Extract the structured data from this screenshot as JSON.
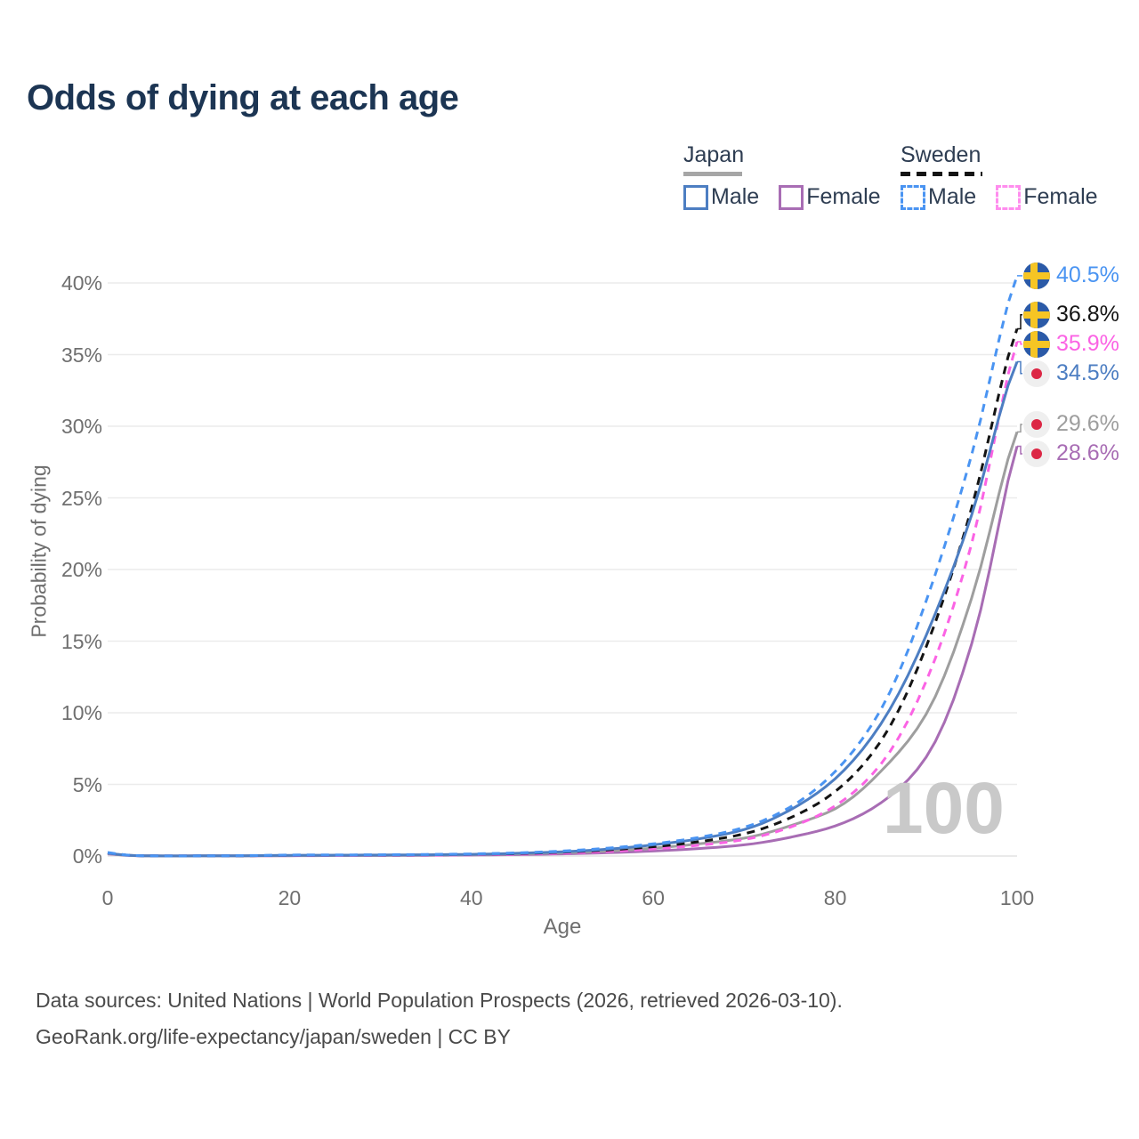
{
  "page": {
    "title": "Odds of dying at each age",
    "watermark": "100"
  },
  "legend": {
    "groups": [
      {
        "label": "Japan",
        "style": "solid",
        "underline_color": "#a6a6a6",
        "items": [
          {
            "label": "Male",
            "color": "#4d7ec2"
          },
          {
            "label": "Female",
            "color": "#a86db4"
          }
        ]
      },
      {
        "label": "Sweden",
        "style": "dashed",
        "underline_color": "#141414",
        "items": [
          {
            "label": "Male",
            "color": "#4a94f2"
          },
          {
            "label": "Female",
            "color": "#ff8dee"
          }
        ]
      }
    ]
  },
  "axes": {
    "x": {
      "title": "Age",
      "ticks": [
        {
          "value": 0,
          "label": "0"
        },
        {
          "value": 20,
          "label": "20"
        },
        {
          "value": 40,
          "label": "40"
        },
        {
          "value": 60,
          "label": "60"
        },
        {
          "value": 80,
          "label": "80"
        },
        {
          "value": 100,
          "label": "100"
        }
      ]
    },
    "y": {
      "title": "Probability of dying",
      "ticks": [
        {
          "value": 0,
          "label": "0%"
        },
        {
          "value": 5,
          "label": "5%"
        },
        {
          "value": 10,
          "label": "10%"
        },
        {
          "value": 15,
          "label": "15%"
        },
        {
          "value": 20,
          "label": "20%"
        },
        {
          "value": 25,
          "label": "25%"
        },
        {
          "value": 30,
          "label": "30%"
        },
        {
          "value": 35,
          "label": "35%"
        },
        {
          "value": 40,
          "label": "40%"
        }
      ]
    }
  },
  "footer": {
    "line1": "Data sources: United Nations | World Population Prospects (2026, retrieved 2026-03-10).",
    "line2": "GeoRank.org/life-expectancy/japan/sweden | CC BY"
  },
  "chart_data": {
    "type": "line",
    "title": "Odds of dying at each age",
    "xlabel": "Age",
    "ylabel": "Probability of dying",
    "xlim": [
      0,
      100
    ],
    "ylim_pct": [
      0,
      42
    ],
    "grid": "horizontal",
    "legend_position": "top-right",
    "watermark": "100",
    "ages": [
      0,
      5,
      10,
      15,
      20,
      25,
      30,
      35,
      40,
      45,
      50,
      55,
      60,
      65,
      70,
      75,
      80,
      85,
      90,
      95,
      100
    ],
    "series": [
      {
        "id": "japan_female",
        "country": "Japan",
        "sex": "Female",
        "color": "#a86db4",
        "dashed": false,
        "flag": "japan",
        "end_label": "28.6%",
        "end_value_pct": 28.6,
        "values_pct": [
          0.15,
          0.01,
          0.01,
          0.01,
          0.02,
          0.03,
          0.04,
          0.05,
          0.07,
          0.1,
          0.15,
          0.23,
          0.35,
          0.52,
          0.78,
          1.3,
          2.1,
          3.7,
          6.9,
          14.8,
          28.6
        ]
      },
      {
        "id": "japan_total",
        "country": "Japan",
        "sex": "Both",
        "color": "#9e9e9e",
        "dashed": false,
        "flag": "japan",
        "end_label": "29.6%",
        "end_value_pct": 29.6,
        "values_pct": [
          0.17,
          0.01,
          0.01,
          0.02,
          0.03,
          0.04,
          0.05,
          0.07,
          0.1,
          0.15,
          0.23,
          0.36,
          0.55,
          0.85,
          1.25,
          2.1,
          3.3,
          5.9,
          9.9,
          18.0,
          29.6
        ]
      },
      {
        "id": "sweden_female",
        "country": "Sweden",
        "sex": "Female",
        "color": "#fb63e4",
        "dashed": true,
        "flag": "sweden",
        "end_label": "35.9%",
        "end_value_pct": 35.9,
        "values_pct": [
          0.2,
          0.01,
          0.01,
          0.02,
          0.03,
          0.04,
          0.05,
          0.06,
          0.09,
          0.13,
          0.2,
          0.32,
          0.5,
          0.75,
          1.15,
          2.0,
          3.5,
          6.4,
          12.2,
          21.8,
          35.9
        ]
      },
      {
        "id": "sweden_total",
        "country": "Sweden",
        "sex": "Both",
        "color": "#141414",
        "dashed": true,
        "flag": "sweden",
        "end_label": "36.8%",
        "end_value_pct": 36.8,
        "values_pct": [
          0.22,
          0.01,
          0.01,
          0.02,
          0.05,
          0.06,
          0.07,
          0.09,
          0.12,
          0.17,
          0.27,
          0.42,
          0.65,
          1.0,
          1.55,
          2.65,
          4.5,
          8.0,
          14.6,
          24.3,
          36.8
        ]
      },
      {
        "id": "japan_male",
        "country": "Japan",
        "sex": "Male",
        "color": "#4d7ec2",
        "dashed": false,
        "flag": "japan",
        "end_label": "34.5%",
        "end_value_pct": 34.5,
        "values_pct": [
          0.2,
          0.01,
          0.01,
          0.02,
          0.05,
          0.06,
          0.07,
          0.09,
          0.12,
          0.19,
          0.3,
          0.48,
          0.78,
          1.2,
          1.85,
          3.2,
          5.4,
          9.2,
          15.4,
          23.8,
          34.5
        ]
      },
      {
        "id": "sweden_male",
        "country": "Sweden",
        "sex": "Male",
        "color": "#4a94f2",
        "dashed": true,
        "flag": "sweden",
        "end_label": "40.5%",
        "end_value_pct": 40.5,
        "values_pct": [
          0.25,
          0.01,
          0.01,
          0.03,
          0.07,
          0.08,
          0.09,
          0.11,
          0.15,
          0.22,
          0.35,
          0.55,
          0.85,
          1.3,
          2.0,
          3.4,
          5.9,
          10.2,
          17.8,
          28.0,
          40.5
        ]
      }
    ]
  }
}
